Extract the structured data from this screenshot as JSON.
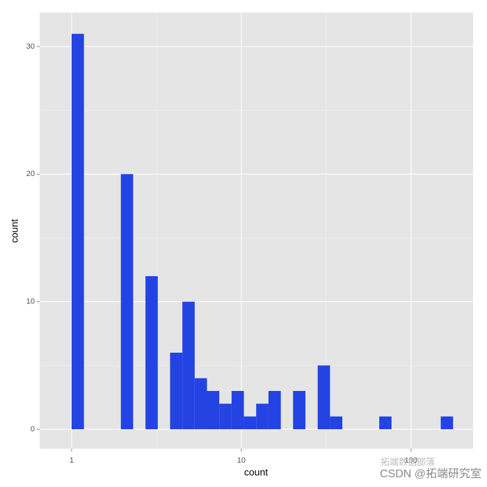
{
  "chart_data": {
    "type": "histogram",
    "xlabel": "count",
    "ylabel": "count",
    "bins": [
      1,
      1.182,
      1.396,
      1.65,
      1.95,
      2.304,
      2.723,
      3.218,
      3.802,
      4.493,
      5.309,
      6.274,
      7.413,
      8.76,
      10.35,
      12.23,
      14.45,
      17.08,
      20.18,
      23.85,
      28.18,
      33.3,
      39.36,
      46.51,
      54.95,
      64.94,
      76.74,
      90.69,
      107.2,
      126.6,
      149.6,
      176.8
    ],
    "values": [
      31,
      0,
      0,
      0,
      20,
      0,
      12,
      0,
      6,
      10,
      4,
      3,
      2,
      3,
      1,
      2,
      3,
      0,
      3,
      0,
      5,
      1,
      0,
      0,
      0,
      1,
      0,
      0,
      0,
      0,
      1
    ],
    "color": "#2343e2",
    "xscale": "log",
    "xlim": [
      0.648,
      232
    ],
    "xticks": [
      1,
      10,
      100
    ],
    "ylim": [
      -1.53,
      32.67
    ],
    "yticks": [
      0,
      10,
      20,
      30
    ],
    "grid": true,
    "watermark": "CSDN @拓端研究室",
    "watermark2": "拓端数据部落"
  }
}
